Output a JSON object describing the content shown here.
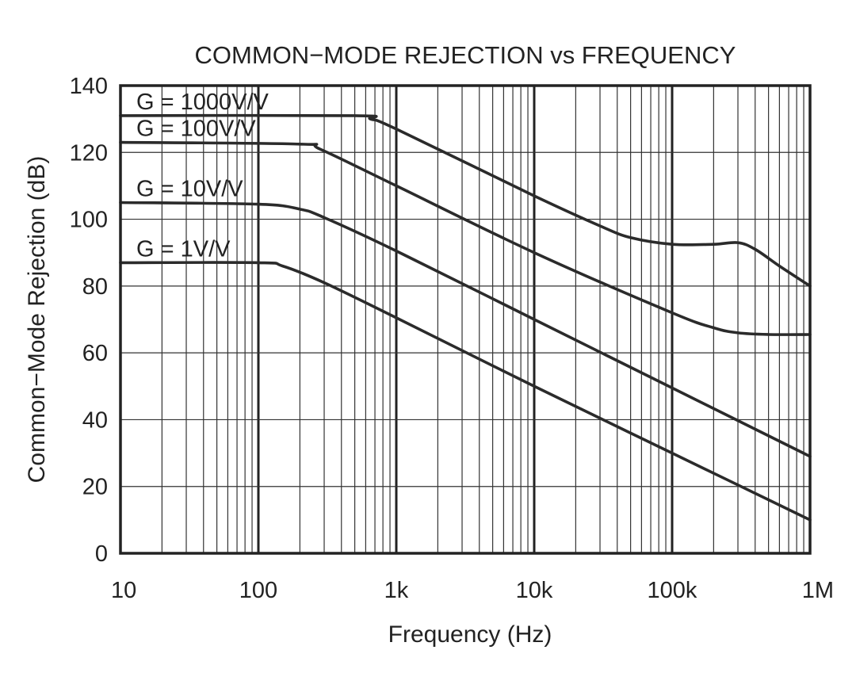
{
  "chart_data": {
    "type": "line",
    "title": "COMMON−MODE REJECTION vs FREQUENCY",
    "xlabel": "Frequency (Hz)",
    "ylabel": "Common−Mode Rejection (dB)",
    "x_scale": "log",
    "xlim": [
      10,
      1000000
    ],
    "ylim": [
      0,
      140
    ],
    "grid": true,
    "x_ticks": [
      {
        "value": 10,
        "label": "10"
      },
      {
        "value": 100,
        "label": "100"
      },
      {
        "value": 1000,
        "label": "1k"
      },
      {
        "value": 10000,
        "label": "10k"
      },
      {
        "value": 100000,
        "label": "100k"
      },
      {
        "value": 1000000,
        "label": "1M"
      }
    ],
    "y_ticks": [
      {
        "value": 0,
        "label": "0"
      },
      {
        "value": 20,
        "label": "20"
      },
      {
        "value": 40,
        "label": "40"
      },
      {
        "value": 60,
        "label": "60"
      },
      {
        "value": 80,
        "label": "80"
      },
      {
        "value": 100,
        "label": "100"
      },
      {
        "value": 120,
        "label": "120"
      },
      {
        "value": 140,
        "label": "140"
      }
    ],
    "series": [
      {
        "name": "G = 1000V/V",
        "points": [
          [
            10,
            131
          ],
          [
            500,
            131
          ],
          [
            650,
            130
          ],
          [
            1000,
            127
          ],
          [
            10000,
            107
          ],
          [
            30000,
            98
          ],
          [
            50000,
            94.5
          ],
          [
            100000,
            92.5
          ],
          [
            200000,
            92.5
          ],
          [
            300000,
            93
          ],
          [
            400000,
            91
          ],
          [
            600000,
            86
          ],
          [
            1000000,
            80
          ]
        ]
      },
      {
        "name": "G = 100V/V",
        "points": [
          [
            10,
            123
          ],
          [
            200,
            122.5
          ],
          [
            280,
            121
          ],
          [
            1000,
            110
          ],
          [
            10000,
            90
          ],
          [
            100000,
            72
          ],
          [
            200000,
            67.5
          ],
          [
            300000,
            66
          ],
          [
            500000,
            65.5
          ],
          [
            1000000,
            65.5
          ]
        ]
      },
      {
        "name": "G = 10V/V",
        "points": [
          [
            10,
            105
          ],
          [
            100,
            104.5
          ],
          [
            200,
            103
          ],
          [
            300,
            100.5
          ],
          [
            1000,
            90.5
          ],
          [
            10000,
            70
          ],
          [
            100000,
            49.5
          ],
          [
            1000000,
            29
          ]
        ]
      },
      {
        "name": "G = 1V/V",
        "points": [
          [
            10,
            87
          ],
          [
            100,
            87
          ],
          [
            150,
            86
          ],
          [
            300,
            81
          ],
          [
            1000,
            70.5
          ],
          [
            10000,
            50
          ],
          [
            100000,
            30
          ],
          [
            1000000,
            10
          ]
        ]
      }
    ]
  }
}
